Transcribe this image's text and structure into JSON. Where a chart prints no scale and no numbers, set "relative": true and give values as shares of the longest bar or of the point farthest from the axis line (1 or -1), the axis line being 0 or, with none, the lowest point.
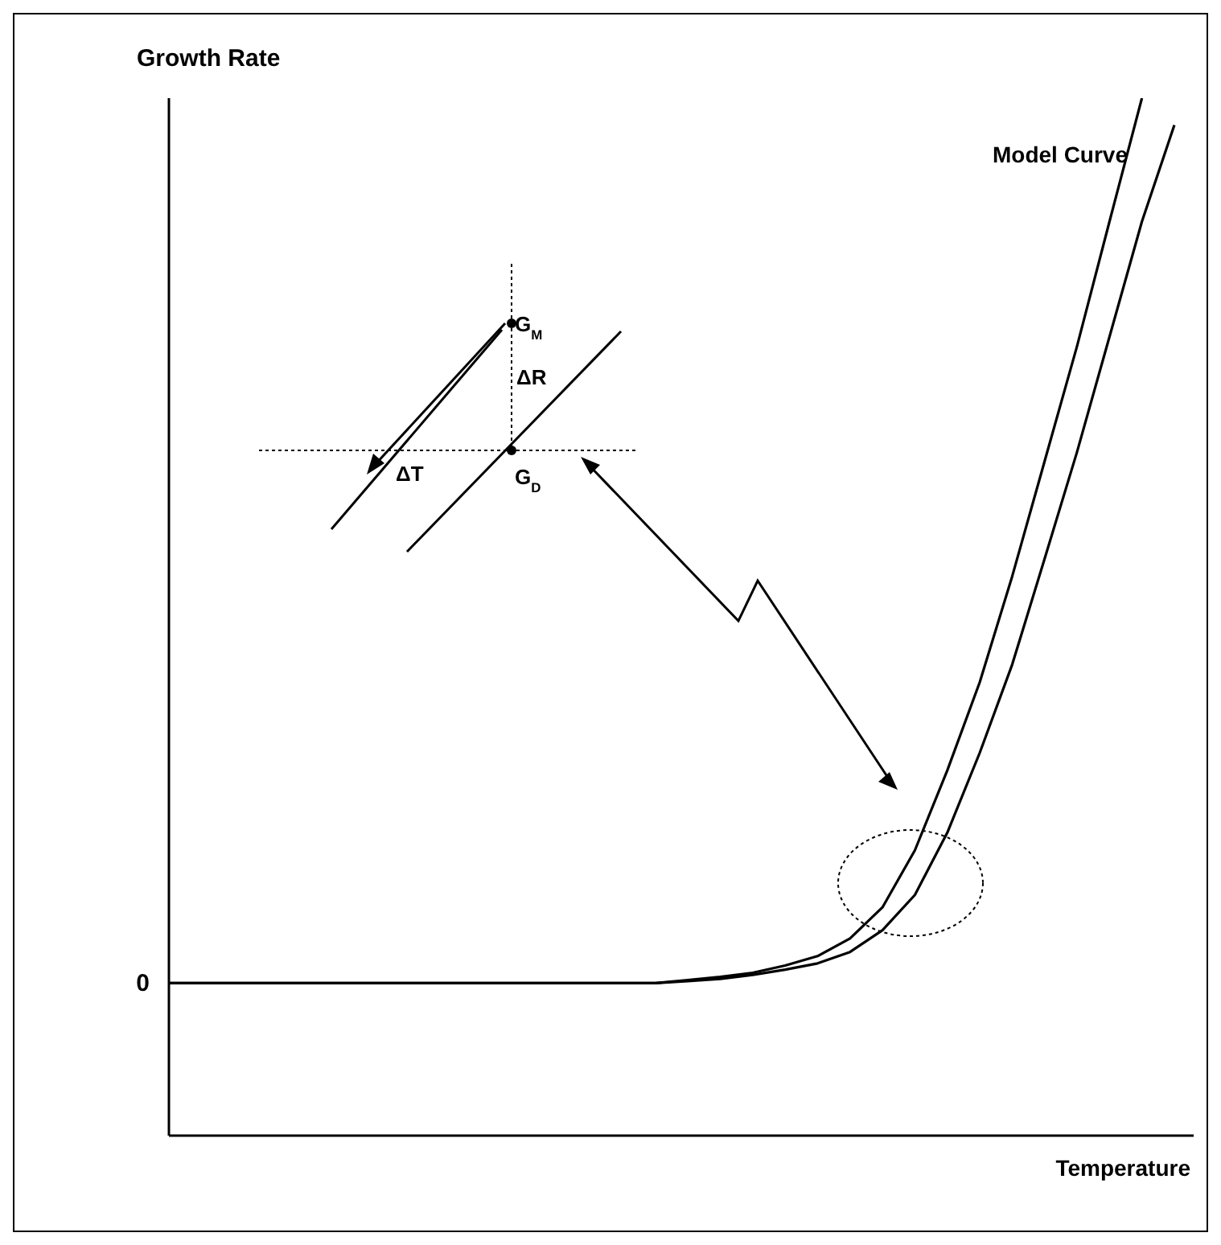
{
  "chart_data": {
    "type": "line",
    "relative": true,
    "xlabel": "Temperature",
    "ylabel": "Growth Rate",
    "categories": [
      null,
      null,
      null,
      null,
      null,
      null,
      null,
      null,
      null,
      null,
      null,
      null,
      null,
      null,
      null,
      null,
      null,
      null,
      null,
      null,
      null,
      null,
      null,
      null,
      null,
      null,
      null,
      null,
      null,
      null,
      null,
      null
    ],
    "series": [
      {
        "color": "#000000",
        "values": [
          0.147,
          0.147,
          0.147,
          0.147,
          0.147,
          0.147,
          0.147,
          0.147,
          0.147,
          0.147,
          0.147,
          0.147,
          0.147,
          0.147,
          0.147,
          0.147,
          0.15,
          0.153,
          0.157,
          0.164,
          0.173,
          0.19,
          0.22,
          0.275,
          0.352,
          0.437,
          0.539,
          0.65,
          0.761,
          0.881,
          1.0,
          null
        ]
      },
      {
        "color": "#000000",
        "values": [
          0.147,
          0.147,
          0.147,
          0.147,
          0.147,
          0.147,
          0.147,
          0.147,
          0.147,
          0.147,
          0.147,
          0.147,
          0.147,
          0.147,
          0.147,
          0.147,
          0.149,
          0.151,
          0.155,
          0.16,
          0.166,
          0.177,
          0.198,
          0.232,
          0.292,
          0.369,
          0.454,
          0.556,
          0.659,
          0.77,
          0.881,
          0.974
        ]
      }
    ],
    "annotations": [
      "0",
      "Model Curve",
      "G$_{M}$",
      "ΔR",
      "ΔT",
      "G$_{D}$"
    ],
    "marker": "none",
    "line_style": "solid"
  }
}
